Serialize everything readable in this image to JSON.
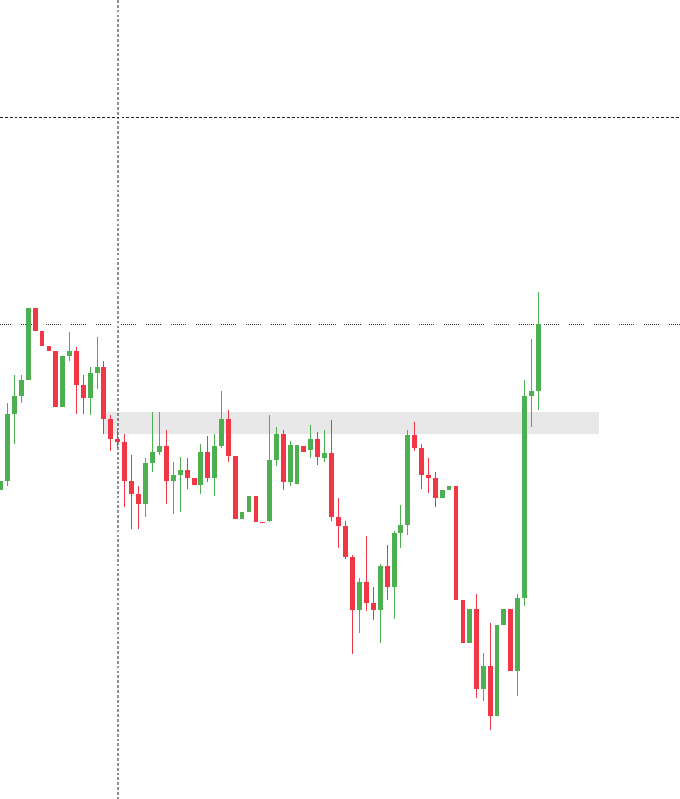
{
  "chart_data": {
    "type": "candlestick",
    "ylim": [
      0,
      1151
    ],
    "up_color": "#4caf50",
    "down_color": "#f23645",
    "open": [
      445,
      458,
      554,
      580,
      604,
      707,
      674,
      653,
      646,
      565,
      638,
      646,
      597,
      578,
      613,
      623,
      548,
      519,
      514,
      458,
      439,
      425,
      484,
      500,
      509,
      458,
      467,
      474,
      463,
      452,
      500,
      463,
      509,
      547,
      494,
      403,
      413,
      436,
      399,
      401,
      488,
      526,
      456,
      454,
      509,
      503,
      519,
      491,
      499,
      406,
      393,
      349,
      272,
      312,
      283,
      272,
      336,
      305,
      383,
      394,
      524,
      506,
      467,
      463,
      434,
      445,
      451,
      286,
      225,
      273,
      158,
      191,
      119,
      250,
      273,
      184,
      289,
      581,
      588
    ],
    "close": [
      458,
      554,
      580,
      604,
      707,
      674,
      653,
      646,
      565,
      638,
      646,
      597,
      578,
      613,
      623,
      548,
      519,
      514,
      458,
      439,
      425,
      484,
      500,
      509,
      458,
      467,
      474,
      463,
      452,
      500,
      463,
      509,
      547,
      494,
      403,
      413,
      436,
      399,
      397,
      488,
      526,
      456,
      510,
      510,
      500,
      518,
      493,
      499,
      406,
      393,
      349,
      272,
      312,
      283,
      272,
      336,
      305,
      383,
      394,
      524,
      506,
      467,
      463,
      434,
      445,
      451,
      286,
      225,
      273,
      158,
      192,
      119,
      250,
      273,
      184,
      290,
      581,
      588,
      684
    ],
    "high": [
      486,
      571,
      611,
      611,
      731,
      714,
      683,
      704,
      651,
      641,
      673,
      651,
      611,
      623,
      665,
      631,
      553,
      531,
      526,
      496,
      451,
      491,
      557,
      557,
      531,
      486,
      493,
      491,
      481,
      511,
      523,
      526,
      588,
      561,
      501,
      451,
      451,
      446,
      407,
      553,
      536,
      531,
      516,
      516,
      521,
      539,
      529,
      531,
      546,
      433,
      401,
      351,
      319,
      379,
      305,
      339,
      366,
      386,
      423,
      531,
      543,
      511,
      491,
      471,
      461,
      511,
      463,
      291,
      399,
      296,
      211,
      253,
      251,
      341,
      281,
      296,
      604,
      663,
      731
    ],
    "low": [
      431,
      451,
      511,
      571,
      601,
      646,
      641,
      631,
      544,
      529,
      631,
      554,
      554,
      553,
      591,
      526,
      501,
      506,
      421,
      389,
      389,
      406,
      471,
      495,
      425,
      411,
      413,
      446,
      433,
      439,
      456,
      436,
      506,
      486,
      383,
      305,
      406,
      393,
      393,
      399,
      479,
      445,
      451,
      423,
      491,
      491,
      481,
      486,
      401,
      361,
      346,
      209,
      239,
      271,
      258,
      225,
      286,
      259,
      361,
      381,
      501,
      446,
      441,
      421,
      396,
      433,
      276,
      99,
      216,
      146,
      141,
      99,
      113,
      221,
      181,
      149,
      278,
      536,
      561
    ]
  }
}
